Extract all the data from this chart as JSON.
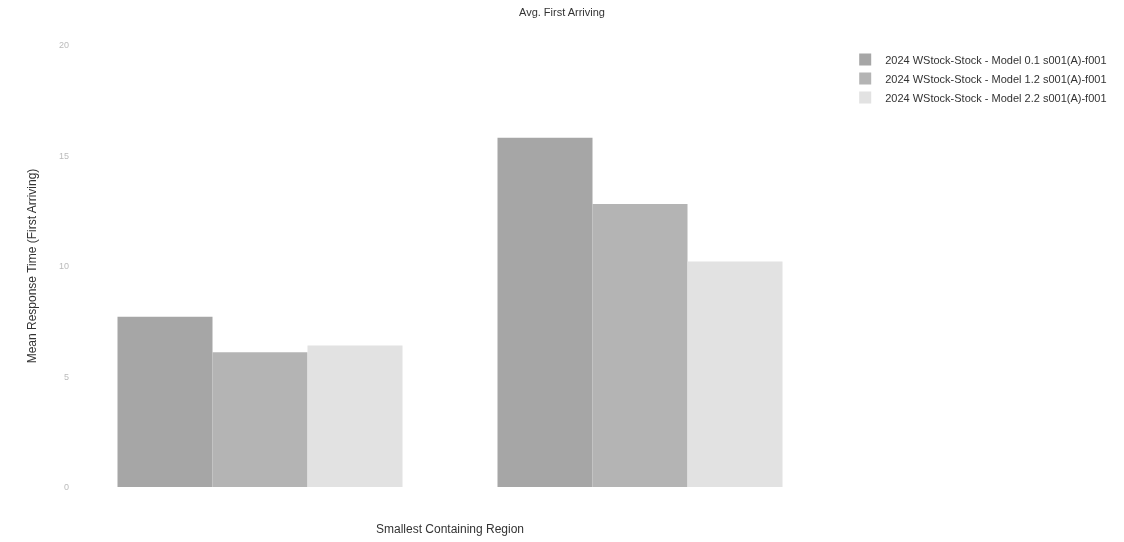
{
  "chart_data": {
    "type": "bar",
    "title": "Avg. First Arriving",
    "xlabel": "Smallest Containing Region",
    "ylabel": "Mean Response Time (First Arriving)",
    "categories": [
      null,
      null
    ],
    "series": [
      {
        "name": "2024 WStock-Stock - Model 0.1 s001(A)-f001",
        "color": "#a6a6a6",
        "values": [
          7.7,
          15.8
        ]
      },
      {
        "name": "2024 WStock-Stock - Model 1.2 s001(A)-f001",
        "color": "#b4b4b4",
        "values": [
          6.1,
          12.8
        ]
      },
      {
        "name": "2024 WStock-Stock - Model 2.2 s001(A)-f001",
        "color": "#e2e2e2",
        "values": [
          6.4,
          10.2
        ]
      }
    ],
    "ylim": [
      0,
      20
    ],
    "yticks": [
      0,
      5,
      10,
      15,
      20
    ],
    "grid": false,
    "legend": "top right"
  }
}
